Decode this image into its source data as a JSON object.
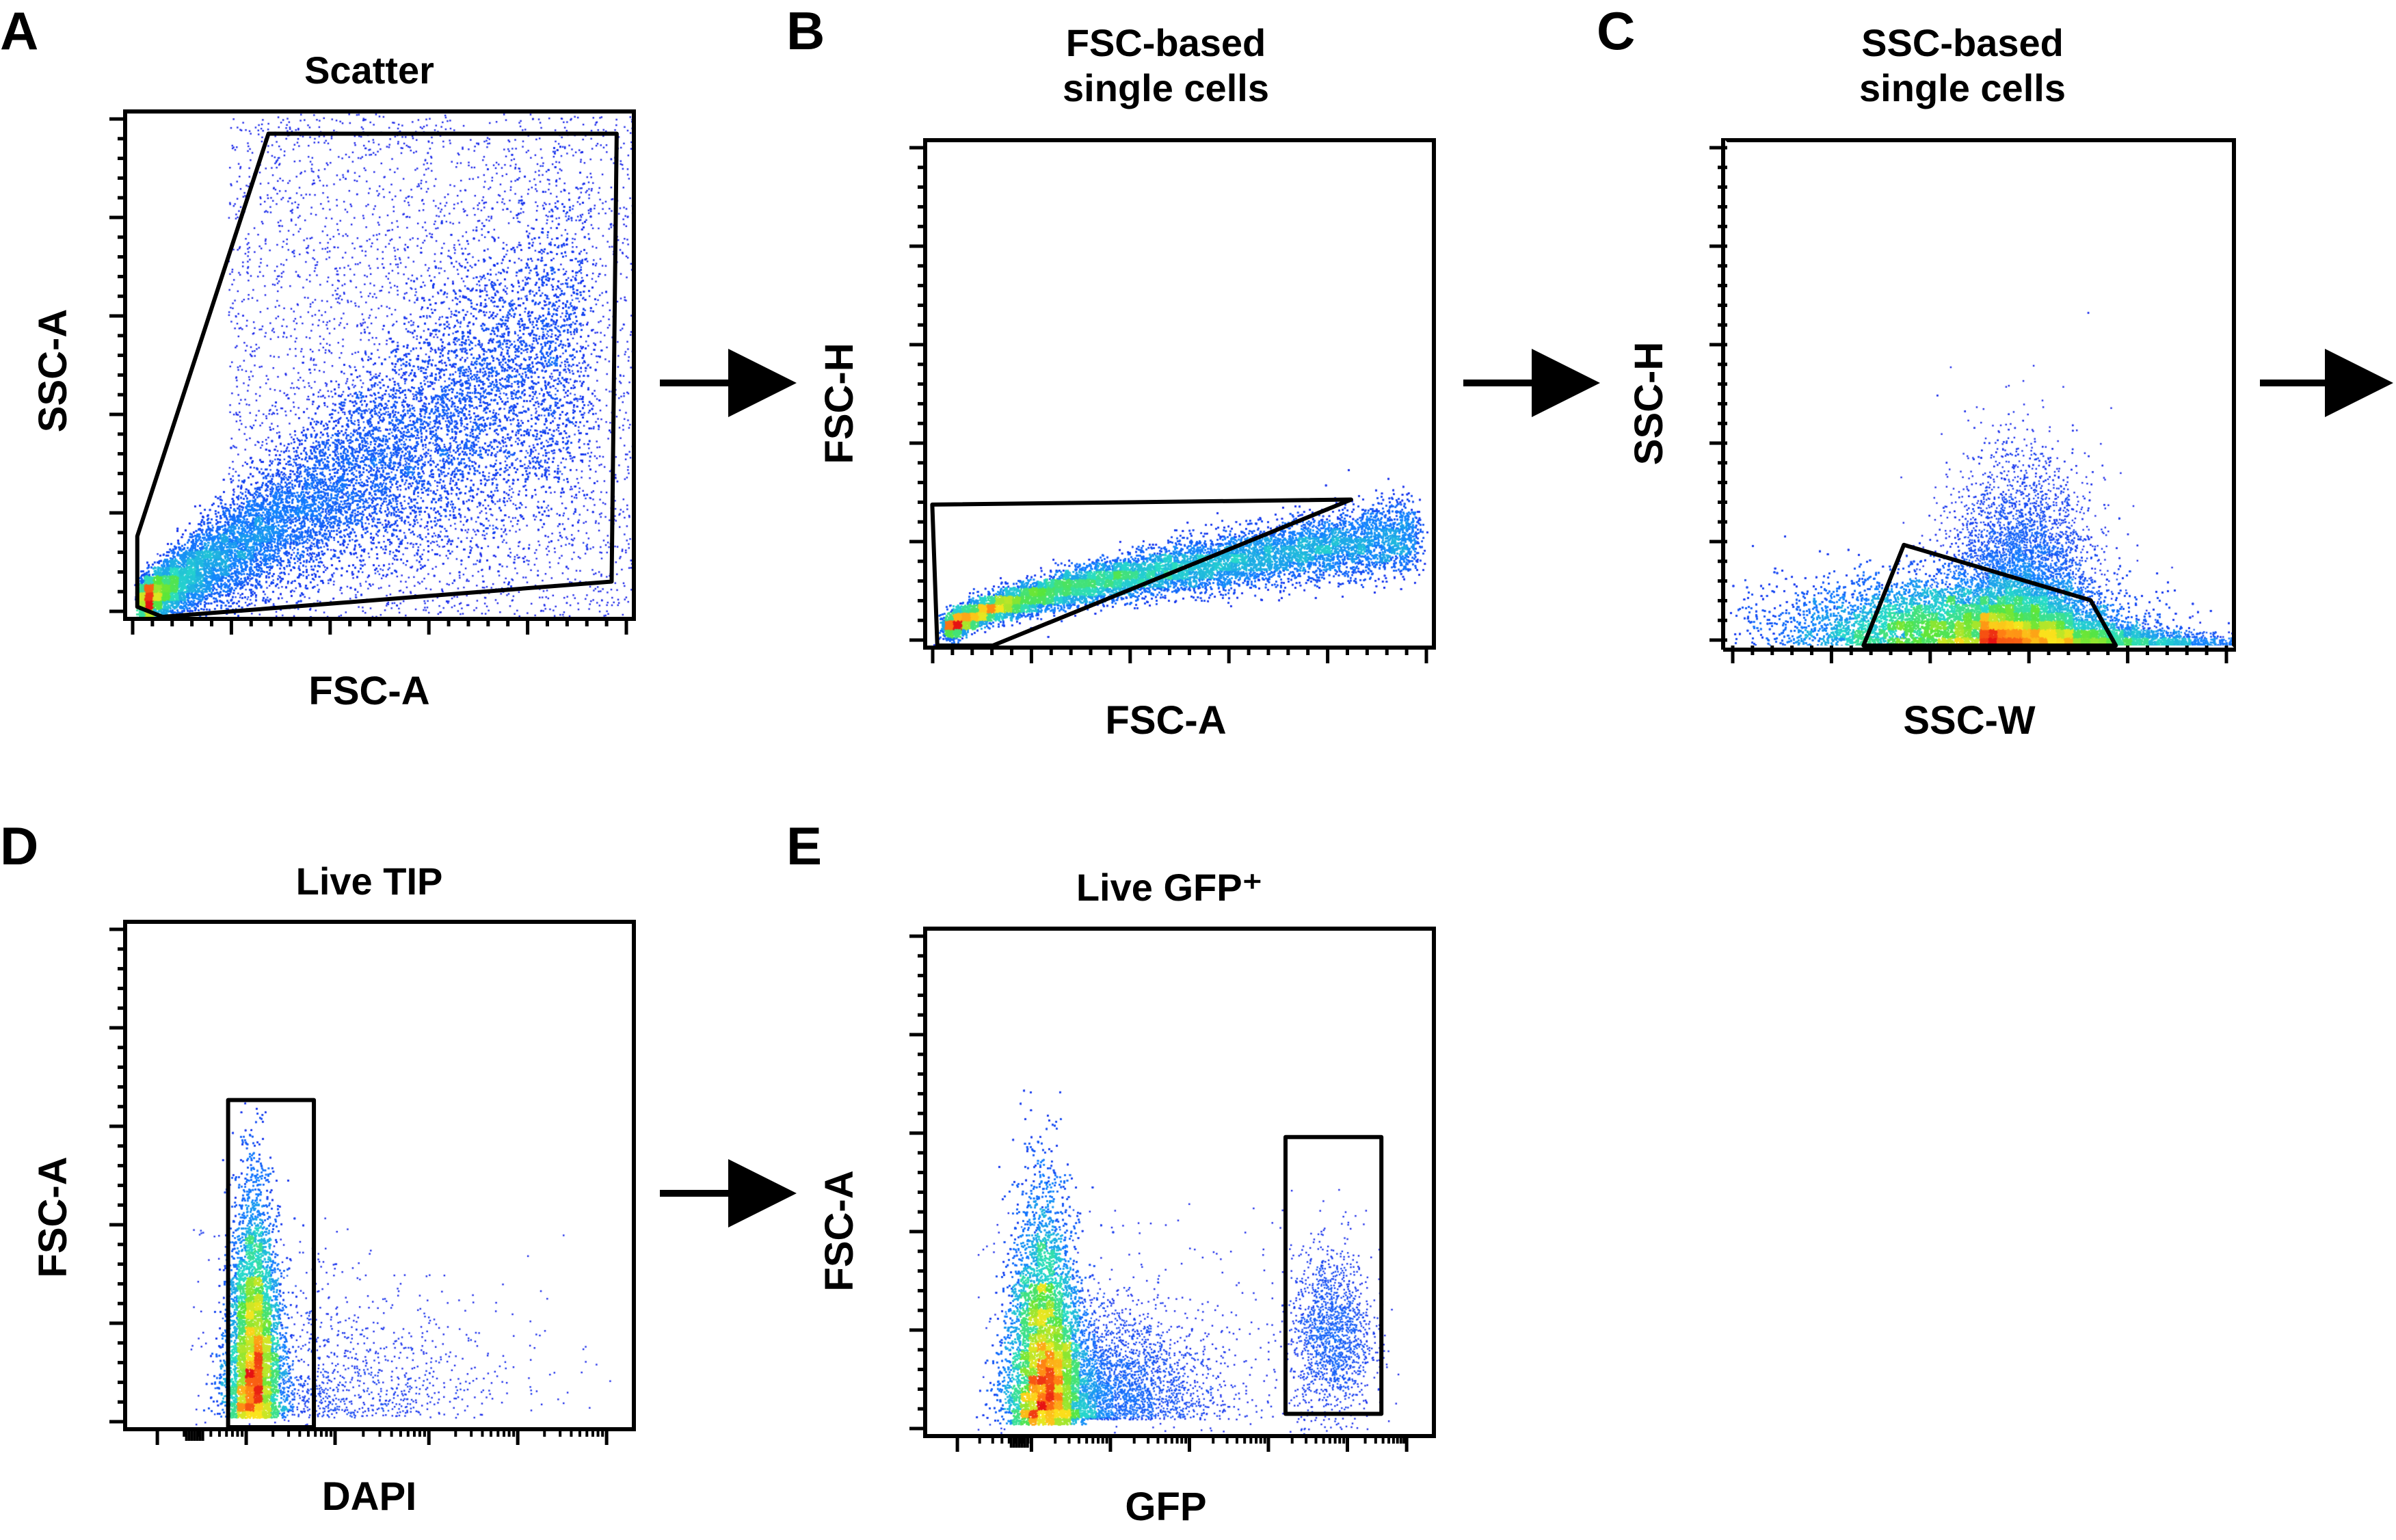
{
  "chart_data": [
    {
      "type": "scatter",
      "panel": "A",
      "title": "Scatter",
      "xlabel": "FSC-A",
      "ylabel": "SSC-A",
      "density": "pseudocolor",
      "x_scale": "linear",
      "y_scale": "linear",
      "xlim": [
        0,
        1
      ],
      "ylim": [
        0,
        1
      ],
      "gate": {
        "shape": "polygon",
        "points": [
          [
            0.02,
            0.16
          ],
          [
            0.28,
            0.96
          ],
          [
            0.97,
            0.96
          ],
          [
            0.96,
            0.07
          ],
          [
            0.07,
            0.0
          ],
          [
            0.02,
            0.02
          ]
        ]
      },
      "population": {
        "from": [
          0.03,
          0.03
        ],
        "to": [
          0.9,
          0.55
        ],
        "spread": 0.13
      }
    },
    {
      "type": "scatter",
      "panel": "B",
      "title": "FSC-based\nsingle cells",
      "xlabel": "FSC-A",
      "ylabel": "FSC-H",
      "density": "pseudocolor",
      "x_scale": "linear",
      "y_scale": "linear",
      "xlim": [
        0,
        1
      ],
      "ylim": [
        0,
        1
      ],
      "gate": {
        "shape": "polygon",
        "points": [
          [
            0.01,
            0.28
          ],
          [
            0.84,
            0.29
          ],
          [
            0.13,
            0.0
          ],
          [
            0.02,
            0.0
          ]
        ]
      },
      "population": {
        "from": [
          0.04,
          0.03
        ],
        "to": [
          0.97,
          0.22
        ],
        "spread": 0.025
      }
    },
    {
      "type": "scatter",
      "panel": "C",
      "title": "SSC-based\nsingle cells",
      "xlabel": "SSC-W",
      "ylabel": "SSC-H",
      "density": "pseudocolor",
      "x_scale": "linear",
      "y_scale": "linear",
      "xlim": [
        0,
        1
      ],
      "ylim": [
        0,
        1
      ],
      "gate": {
        "shape": "polygon",
        "points": [
          [
            0.27,
            0.0
          ],
          [
            0.35,
            0.2
          ],
          [
            0.72,
            0.09
          ],
          [
            0.77,
            0.0
          ]
        ]
      },
      "population": {
        "center": [
          0.45,
          0.04
        ],
        "sx": 0.17,
        "sy": 0.05,
        "tail": [
          0.98,
          0.01
        ],
        "peak": [
          0.6,
          0.4
        ]
      }
    },
    {
      "type": "scatter",
      "panel": "D",
      "title": "Live TIP",
      "xlabel": "DAPI",
      "ylabel": "FSC-A",
      "density": "pseudocolor",
      "x_scale": "biexponential",
      "y_scale": "linear",
      "xlim": [
        0,
        1
      ],
      "ylim": [
        0,
        1
      ],
      "gate": {
        "shape": "rectangle",
        "x": [
          0.2,
          0.37
        ],
        "y": [
          0.0,
          0.65
        ]
      },
      "population": {
        "center": [
          0.25,
          0.06
        ],
        "sx": 0.03,
        "sy_top": 0.6,
        "secondary": [
          0.45,
          0.08
        ]
      }
    },
    {
      "type": "scatter",
      "panel": "E",
      "title": "Live GFP⁺",
      "xlabel": "GFP",
      "ylabel": "FSC-A",
      "density": "pseudocolor",
      "x_scale": "biexponential",
      "y_scale": "linear",
      "xlim": [
        0,
        1
      ],
      "ylim": [
        0,
        1
      ],
      "gate": {
        "shape": "rectangle",
        "x": [
          0.71,
          0.9
        ],
        "y": [
          0.04,
          0.59
        ]
      },
      "population": {
        "center": [
          0.23,
          0.07
        ],
        "sx": 0.04,
        "sy_top": 0.64,
        "gfp_positive": [
          0.8,
          0.2
        ]
      }
    }
  ]
}
